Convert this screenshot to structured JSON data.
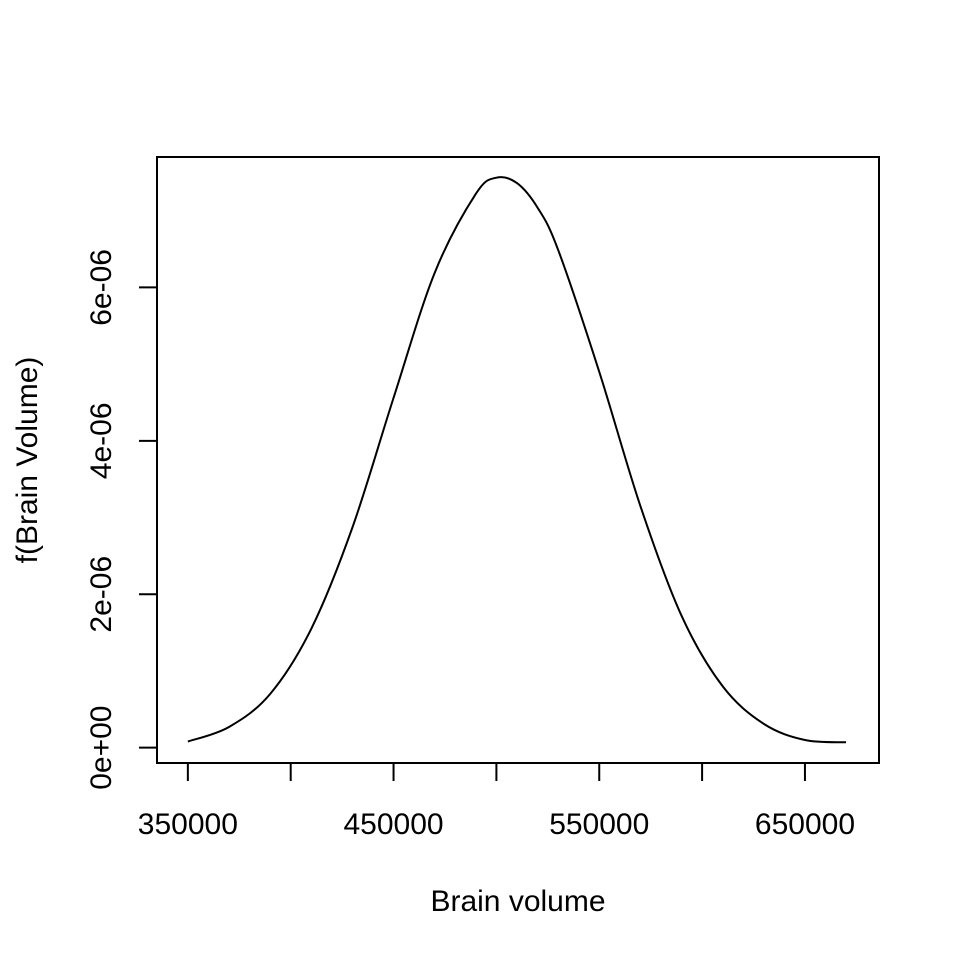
{
  "chart_data": {
    "type": "line",
    "title": "",
    "xlabel": "Brain volume",
    "ylabel": "f(Brain Volume)",
    "xlim": [
      335000,
      686000
    ],
    "ylim": [
      -2e-07,
      7.7e-06
    ],
    "x_ticks": [
      {
        "value": 350000,
        "label": "350000"
      },
      {
        "value": 400000,
        "label": ""
      },
      {
        "value": 450000,
        "label": "450000"
      },
      {
        "value": 500000,
        "label": ""
      },
      {
        "value": 550000,
        "label": "550000"
      },
      {
        "value": 600000,
        "label": ""
      },
      {
        "value": 650000,
        "label": "650000"
      }
    ],
    "y_ticks": [
      {
        "value": 0,
        "label": "0e+00"
      },
      {
        "value": 2e-06,
        "label": "2e-06"
      },
      {
        "value": 4e-06,
        "label": "4e-06"
      },
      {
        "value": 6e-06,
        "label": "6e-06"
      }
    ],
    "grid": false,
    "legend": "none",
    "line_color": "#000000",
    "series": [
      {
        "x": [
          350000,
          370000,
          390000,
          410000,
          430000,
          450000,
          470000,
          490000,
          500000,
          510000,
          520000,
          530000,
          550000,
          570000,
          590000,
          610000,
          630000,
          650000,
          670000
        ],
        "y": [
          8e-08,
          2.7e-07,
          7e-07,
          1.55e-06,
          2.87e-06,
          4.56e-06,
          6.19e-06,
          7.22e-06,
          7.43e-06,
          7.36e-06,
          7.04e-06,
          6.49e-06,
          4.9e-06,
          3.15e-06,
          1.72e-06,
          8e-07,
          3.1e-07,
          1e-07,
          7e-08
        ]
      }
    ]
  }
}
